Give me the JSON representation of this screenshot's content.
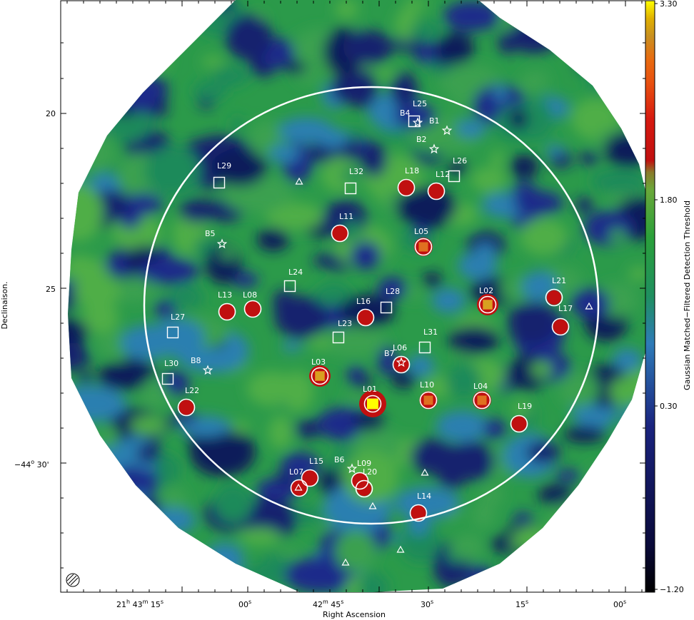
{
  "axes": {
    "xlabel": "Right Ascension",
    "ylabel": "Declinaison.",
    "x_ticks": [
      {
        "h": "21",
        "hs": "h",
        "m": "43",
        "ms": "m",
        "s": "15",
        "ss": "s"
      },
      {
        "s": "00",
        "ss": "s"
      },
      {
        "h": "",
        "m": "42",
        "ms": "m",
        "s": "45",
        "ss": "s"
      },
      {
        "s": "30",
        "ss": "s"
      },
      {
        "s": "15",
        "ss": "s"
      },
      {
        "s": "00",
        "ss": "s"
      }
    ],
    "y_ticks": [
      "20",
      "25",
      "'"
    ],
    "y_tick_minor": "30'",
    "y_tick_deg": "−44",
    "y_tick_deg_sup": "o"
  },
  "colorbar": {
    "label": "Gaussian Matched−Filtered Detection Threshold",
    "ticks": [
      "3.30",
      "1.80",
      "0.30",
      "−1.20"
    ]
  },
  "sources": {
    "circles": [
      "L01",
      "L02",
      "L03",
      "L04",
      "L05",
      "L06",
      "L07",
      "L08",
      "L09",
      "L10",
      "L11",
      "L12",
      "L13",
      "L14",
      "L15",
      "L16",
      "L17",
      "L18",
      "L19",
      "L20",
      "L21",
      "L22"
    ],
    "squares": [
      "L23",
      "L24",
      "L25",
      "L26",
      "L27",
      "L28",
      "L29",
      "L30",
      "L31",
      "L32"
    ],
    "stars": [
      "B1",
      "B2",
      "B4",
      "B5",
      "B6",
      "B7",
      "B8"
    ]
  }
}
